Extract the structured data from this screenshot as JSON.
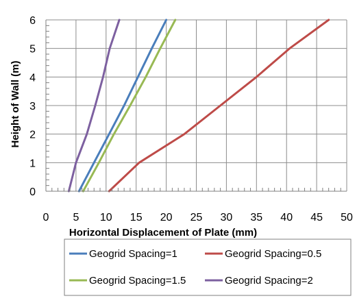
{
  "chart_data": {
    "type": "line",
    "title": "",
    "xlabel": "Horizontal Displacement of Plate (mm)",
    "ylabel": "Height of Wall (m)",
    "xlim": [
      0,
      50
    ],
    "ylim": [
      0,
      6
    ],
    "xticks": [
      "0",
      "5",
      "10",
      "15",
      "20",
      "25",
      "30",
      "35",
      "40",
      "45",
      "50"
    ],
    "yticks": [
      "0",
      "1",
      "2",
      "3",
      "4",
      "5",
      "6"
    ],
    "grid": true,
    "legend_position": "bottom",
    "series": [
      {
        "name": "Geogrid Spacing=1",
        "color": "#4a7ebb",
        "points": [
          [
            5.5,
            0
          ],
          [
            8.0,
            1
          ],
          [
            10.5,
            2
          ],
          [
            13.0,
            3
          ],
          [
            15.3,
            4
          ],
          [
            17.6,
            5
          ],
          [
            20.0,
            6
          ]
        ]
      },
      {
        "name": "Geogrid Spacing=0.5",
        "color": "#be4b48",
        "points": [
          [
            10.5,
            0
          ],
          [
            15.5,
            1
          ],
          [
            23.0,
            2
          ],
          [
            29.0,
            3
          ],
          [
            35.0,
            4
          ],
          [
            40.5,
            5
          ],
          [
            47.0,
            6
          ]
        ]
      },
      {
        "name": "Geogrid Spacing=1.5",
        "color": "#98b954",
        "points": [
          [
            6.2,
            0
          ],
          [
            8.8,
            1
          ],
          [
            11.3,
            2
          ],
          [
            14.0,
            3
          ],
          [
            16.6,
            4
          ],
          [
            19.0,
            5
          ],
          [
            21.5,
            6
          ]
        ]
      },
      {
        "name": "Geogrid Spacing=2",
        "color": "#7d60a0",
        "points": [
          [
            3.8,
            0
          ],
          [
            5.0,
            1
          ],
          [
            6.8,
            2
          ],
          [
            8.2,
            3
          ],
          [
            9.5,
            4
          ],
          [
            10.6,
            5
          ],
          [
            12.2,
            6
          ]
        ]
      }
    ]
  }
}
